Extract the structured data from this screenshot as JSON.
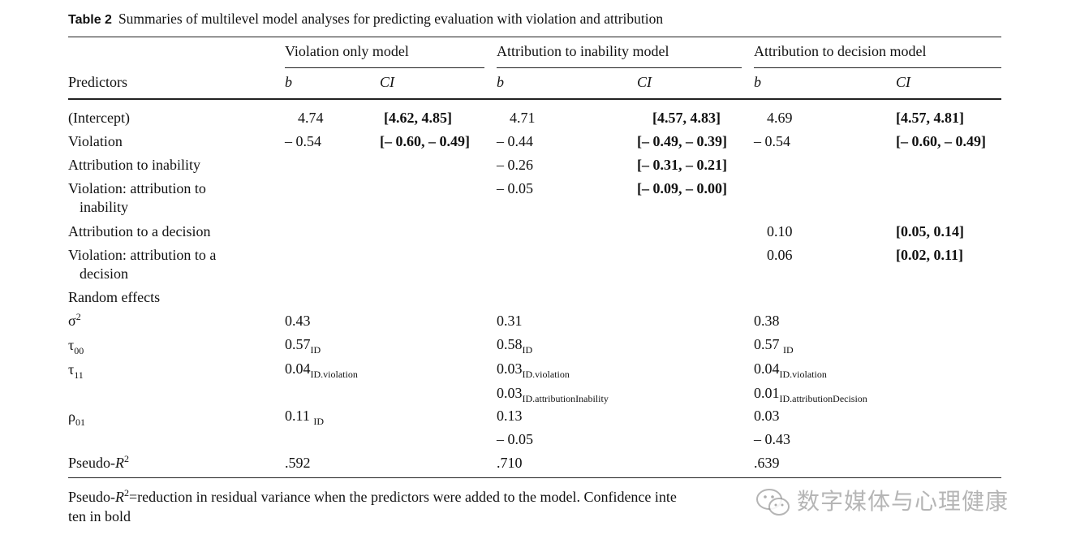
{
  "caption": {
    "label": "Table 2",
    "title": "Summaries of multilevel model analyses for predicting evaluation with violation and attribution"
  },
  "header": {
    "predictors": "Predictors",
    "groups": [
      "Violation only model",
      "Attribution to inability model",
      "Attribution to decision model"
    ],
    "b": "b",
    "ci": "CI"
  },
  "rows": {
    "intercept": {
      "label": "(Intercept)",
      "b1": "4.74",
      "ci1": "[4.62, 4.85]",
      "b2": "4.71",
      "ci2": "[4.57, 4.83]",
      "b3": "4.69",
      "ci3": "[4.57, 4.81]"
    },
    "violation": {
      "label": "Violation",
      "b1": "– 0.54",
      "ci1": "[– 0.60, – 0.49]",
      "b2": "– 0.44",
      "ci2": "[– 0.49, – 0.39]",
      "b3": "– 0.54",
      "ci3": "[– 0.60, – 0.49]"
    },
    "attr_inability": {
      "label": "Attribution to inability",
      "b2": "– 0.26",
      "ci2": "[– 0.31, – 0.21]"
    },
    "viol_attr_inability": {
      "label_line1": "Violation: attribution to",
      "label_line2": "inability",
      "b2": "– 0.05",
      "ci2": "[– 0.09, – 0.00]"
    },
    "attr_decision": {
      "label": "Attribution to a decision",
      "b3": "0.10",
      "ci3": "[0.05, 0.14]"
    },
    "viol_attr_decision": {
      "label_line1": "Violation: attribution to a",
      "label_line2": "decision",
      "b3": "0.06",
      "ci3": "[0.02, 0.11]"
    },
    "random_effects": {
      "label": "Random effects"
    },
    "sigma2": {
      "symbol": "σ",
      "sup": "2",
      "v1": "0.43",
      "v2": "0.31",
      "v3": "0.38"
    },
    "tau00": {
      "symbol": "τ",
      "sub": "00",
      "v1": "0.57",
      "s1": "ID",
      "v2": "0.58",
      "s2": "ID",
      "v3": "0.57 ",
      "s3": "ID"
    },
    "tau11": {
      "symbol": "τ",
      "sub": "11",
      "v1": "0.04",
      "s1": "ID.violation",
      "v2": "0.03",
      "s2": "ID.violation",
      "v3": "0.04",
      "s3": "ID.violation"
    },
    "tau11b": {
      "v2": "0.03",
      "s2": "ID.attributionInability",
      "v3": "0.01",
      "s3": "ID.attributionDecision"
    },
    "rho01": {
      "symbol": "ρ",
      "sub": "01",
      "v1": "0.11 ",
      "s1": "ID",
      "v2": "0.13",
      "v3": "0.03"
    },
    "rho01b": {
      "v2": "– 0.05",
      "v3": "– 0.43"
    },
    "pseudo": {
      "label": "Pseudo-",
      "italic": "R",
      "sup": "2",
      "v1": ".592",
      "v2": ".710",
      "v3": ".639"
    }
  },
  "footnote": {
    "lead": "Pseudo-",
    "italic": "R",
    "sup": "2",
    "text": "=reduction in residual variance when the predictors were added to the model. Confidence inte",
    "text2": "ten in bold"
  },
  "watermark": {
    "text": "数字媒体与心理健康"
  }
}
